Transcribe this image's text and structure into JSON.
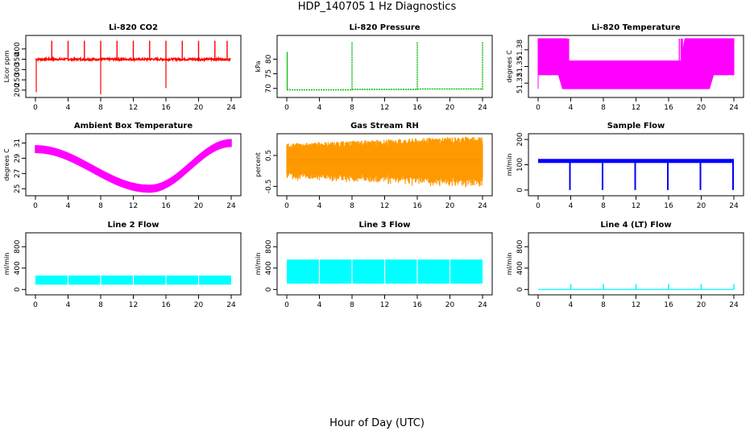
{
  "figure": {
    "title": "HDP_140705  1 Hz Diagnostics",
    "xlabel": "Hour of Day (UTC)"
  },
  "chart_data": [
    {
      "type": "line",
      "title": "Li-820 CO2",
      "ylabel": "Licor ppm",
      "color": "#ff0000",
      "xticks": [
        "0",
        "4",
        "8",
        "12",
        "16",
        "20",
        "24"
      ],
      "xlim": [
        0,
        24
      ],
      "yticks": [
        "200",
        "250",
        "300",
        "350",
        "400"
      ],
      "ylim": [
        180,
        450
      ],
      "pattern": "co2",
      "baseline": 350,
      "spikes_at": [
        2,
        4,
        6,
        8,
        10,
        12,
        14,
        16,
        18,
        20,
        22,
        23.5
      ],
      "dropouts_at": [
        0.1,
        8,
        16
      ]
    },
    {
      "type": "line",
      "title": "Li-820 Pressure",
      "ylabel": "kPa",
      "color": "#00bb00",
      "xticks": [
        "0",
        "4",
        "8",
        "12",
        "16",
        "20",
        "24"
      ],
      "xlim": [
        0,
        24
      ],
      "yticks": [
        "70",
        "75",
        "80"
      ],
      "ylim": [
        68,
        87
      ],
      "pattern": "pressure",
      "baseline": 69.5,
      "spikes_at": [
        8,
        16,
        24
      ],
      "spike_level": 86
    },
    {
      "type": "area",
      "title": "Li-820 Temperature",
      "ylabel": "degrees C",
      "color": "#ff00ff",
      "xticks": [
        "0",
        "4",
        "8",
        "12",
        "16",
        "20",
        "24"
      ],
      "xlim": [
        0,
        24
      ],
      "yticks": [
        "51.32",
        "51.35",
        "51.38"
      ],
      "ylim": [
        51.3,
        51.4
      ],
      "pattern": "temp820",
      "band_low": 51.31,
      "band_high_edges": 51.4,
      "band_high_mid": 51.36
    },
    {
      "type": "area",
      "title": "Ambient Box Temperature",
      "ylabel": "degrees C",
      "color": "#ff00ff",
      "xticks": [
        "0",
        "4",
        "8",
        "12",
        "16",
        "20",
        "24"
      ],
      "xlim": [
        0,
        24
      ],
      "yticks": [
        "25",
        "27",
        "29",
        "31"
      ],
      "ylim": [
        24.5,
        31.8
      ],
      "pattern": "ambient",
      "start": 30.2,
      "minimum": 25.0,
      "min_hour": 14,
      "end": 31.0
    },
    {
      "type": "area",
      "title": "Gas Stream RH",
      "ylabel": "percent",
      "color": "#ff9900",
      "xticks": [
        "0",
        "4",
        "8",
        "12",
        "16",
        "20",
        "24"
      ],
      "xlim": [
        0,
        24
      ],
      "yticks": [
        "-0.5",
        "0.5"
      ],
      "ylim": [
        -0.7,
        1.1
      ],
      "pattern": "rh",
      "center": 0.35,
      "amplitude": 0.55
    },
    {
      "type": "line",
      "title": "Sample Flow",
      "ylabel": "ml/min",
      "color": "#0000ff",
      "xticks": [
        "0",
        "4",
        "8",
        "12",
        "16",
        "20",
        "24"
      ],
      "xlim": [
        0,
        24
      ],
      "yticks": [
        "0",
        "100",
        "200"
      ],
      "ylim": [
        -10,
        210
      ],
      "pattern": "sampleflow",
      "baseline": 115,
      "dropouts_at": [
        4,
        8,
        12,
        16,
        20,
        24
      ]
    },
    {
      "type": "area",
      "title": "Line 2 Flow",
      "ylabel": "ml/min",
      "color": "#00ffff",
      "xticks": [
        "0",
        "4",
        "8",
        "12",
        "16",
        "20",
        "24"
      ],
      "xlim": [
        0,
        24
      ],
      "yticks": [
        "0",
        "400",
        "800"
      ],
      "ylim": [
        -40,
        1000
      ],
      "pattern": "band",
      "low": 90,
      "high": 260,
      "gaps_at": [
        4,
        8,
        12,
        16,
        20
      ]
    },
    {
      "type": "area",
      "title": "Line 3 Flow",
      "ylabel": "ml/min",
      "color": "#00ffff",
      "xticks": [
        "0",
        "4",
        "8",
        "12",
        "16",
        "20",
        "24"
      ],
      "xlim": [
        0,
        24
      ],
      "yticks": [
        "0",
        "400",
        "800"
      ],
      "ylim": [
        -40,
        1000
      ],
      "pattern": "band",
      "low": 110,
      "high": 560,
      "gaps_at": [
        4,
        8,
        12,
        16,
        20
      ]
    },
    {
      "type": "line",
      "title": "Line 4 (LT) Flow",
      "ylabel": "ml/min",
      "color": "#00ffff",
      "xticks": [
        "0",
        "4",
        "8",
        "12",
        "16",
        "20",
        "24"
      ],
      "xlim": [
        0,
        24
      ],
      "yticks": [
        "0",
        "400",
        "800"
      ],
      "ylim": [
        -40,
        1000
      ],
      "pattern": "line4",
      "baseline": 0,
      "spikes_at": [
        4,
        8,
        12,
        16,
        20,
        24
      ],
      "spike_level": 100
    }
  ]
}
